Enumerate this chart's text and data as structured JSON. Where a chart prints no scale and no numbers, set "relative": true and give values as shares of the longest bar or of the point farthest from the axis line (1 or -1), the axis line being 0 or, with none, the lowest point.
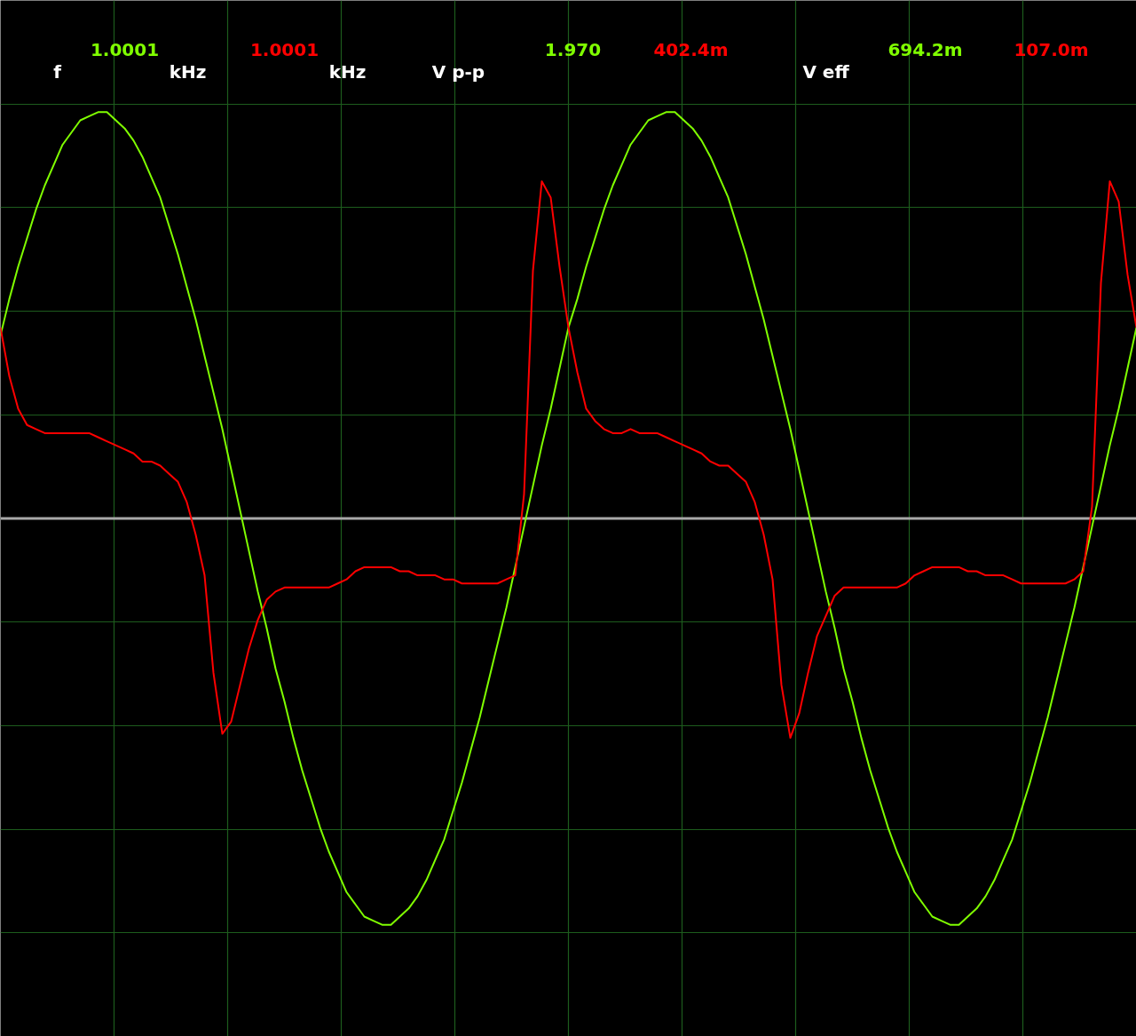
{
  "chart_data": {
    "type": "line",
    "relative": true,
    "categories": [
      null,
      null,
      null,
      null,
      null,
      null,
      null,
      null,
      null,
      null,
      null,
      null,
      null,
      null,
      null,
      null,
      null,
      null,
      null,
      null,
      null,
      null,
      null,
      null,
      null,
      null,
      null,
      null,
      null,
      null,
      null,
      null,
      null,
      null,
      null,
      null,
      null,
      null,
      null,
      null,
      null,
      null,
      null,
      null,
      null,
      null,
      null,
      null,
      null,
      null,
      null,
      null,
      null,
      null,
      null,
      null,
      null,
      null,
      null,
      null,
      null,
      null,
      null,
      null,
      null,
      null,
      null,
      null,
      null,
      null,
      null,
      null,
      null,
      null,
      null,
      null,
      null,
      null,
      null,
      null,
      null,
      null,
      null,
      null,
      null,
      null,
      null,
      null,
      null,
      null,
      null,
      null,
      null,
      null,
      null,
      null,
      null,
      null,
      null,
      null,
      null,
      null,
      null,
      null,
      null,
      null,
      null,
      null,
      null,
      null,
      null,
      null,
      null,
      null,
      null,
      null,
      null,
      null,
      null,
      null,
      null,
      null,
      null,
      null,
      null,
      null,
      null,
      null,
      null
    ],
    "series": [
      {
        "color": "#80ff00",
        "values": [
          0.45,
          0.54,
          0.62,
          0.69,
          0.76,
          0.82,
          0.87,
          0.92,
          0.95,
          0.98,
          0.99,
          1.0,
          1.0,
          0.98,
          0.96,
          0.93,
          0.89,
          0.84,
          0.79,
          0.72,
          0.65,
          0.57,
          0.49,
          0.4,
          0.31,
          0.22,
          0.12,
          0.02,
          -0.08,
          -0.18,
          -0.27,
          -0.37,
          -0.45,
          -0.54,
          -0.62,
          -0.69,
          -0.76,
          -0.82,
          -0.87,
          -0.92,
          -0.95,
          -0.98,
          -0.99,
          -1.0,
          -1.0,
          -0.98,
          -0.96,
          -0.93,
          -0.89,
          -0.84,
          -0.79,
          -0.72,
          -0.65,
          -0.57,
          -0.49,
          -0.4,
          -0.31,
          -0.22,
          -0.12,
          -0.02,
          0.08,
          0.18,
          0.27,
          0.37,
          0.47,
          0.54,
          0.62,
          0.69,
          0.76,
          0.82,
          0.87,
          0.92,
          0.95,
          0.98,
          0.99,
          1.0,
          1.0,
          0.98,
          0.96,
          0.93,
          0.89,
          0.84,
          0.79,
          0.72,
          0.65,
          0.57,
          0.49,
          0.4,
          0.31,
          0.22,
          0.12,
          0.02,
          -0.08,
          -0.18,
          -0.27,
          -0.37,
          -0.45,
          -0.54,
          -0.62,
          -0.69,
          -0.76,
          -0.82,
          -0.87,
          -0.92,
          -0.95,
          -0.98,
          -0.99,
          -1.0,
          -1.0,
          -0.98,
          -0.96,
          -0.93,
          -0.89,
          -0.84,
          -0.79,
          -0.72,
          -0.65,
          -0.57,
          -0.49,
          -0.4,
          -0.31,
          -0.22,
          -0.12,
          -0.02,
          0.08,
          0.18,
          0.27,
          0.37,
          0.47
        ]
      },
      {
        "color": "#ff0000",
        "values": [
          0.47,
          0.35,
          0.27,
          0.23,
          0.22,
          0.21,
          0.21,
          0.21,
          0.21,
          0.21,
          0.21,
          0.2,
          0.19,
          0.18,
          0.17,
          0.16,
          0.14,
          0.14,
          0.13,
          0.11,
          0.09,
          0.04,
          -0.04,
          -0.14,
          -0.38,
          -0.53,
          -0.5,
          -0.41,
          -0.32,
          -0.25,
          -0.2,
          -0.18,
          -0.17,
          -0.17,
          -0.17,
          -0.17,
          -0.17,
          -0.17,
          -0.16,
          -0.15,
          -0.13,
          -0.12,
          -0.12,
          -0.12,
          -0.12,
          -0.13,
          -0.13,
          -0.14,
          -0.14,
          -0.14,
          -0.15,
          -0.15,
          -0.16,
          -0.16,
          -0.16,
          -0.16,
          -0.16,
          -0.15,
          -0.14,
          0.06,
          0.61,
          0.83,
          0.79,
          0.62,
          0.47,
          0.36,
          0.27,
          0.24,
          0.22,
          0.21,
          0.21,
          0.22,
          0.21,
          0.21,
          0.21,
          0.2,
          0.19,
          0.18,
          0.17,
          0.16,
          0.14,
          0.13,
          0.13,
          0.11,
          0.09,
          0.04,
          -0.04,
          -0.15,
          -0.41,
          -0.54,
          -0.48,
          -0.38,
          -0.29,
          -0.24,
          -0.19,
          -0.17,
          -0.17,
          -0.17,
          -0.17,
          -0.17,
          -0.17,
          -0.17,
          -0.16,
          -0.14,
          -0.13,
          -0.12,
          -0.12,
          -0.12,
          -0.12,
          -0.13,
          -0.13,
          -0.14,
          -0.14,
          -0.14,
          -0.15,
          -0.16,
          -0.16,
          -0.16,
          -0.16,
          -0.16,
          -0.16,
          -0.15,
          -0.13,
          0.03,
          0.58,
          0.83,
          0.78,
          0.6,
          0.47
        ]
      }
    ],
    "grid": true,
    "ref_lines": [
      {
        "axis": "y",
        "value": 0,
        "color": "#a8a8a8"
      }
    ],
    "annotations": [
      "f",
      "1.0001",
      "kHz",
      "1.0001",
      "kHz",
      "V p-p",
      "1.970",
      "402.4m",
      "V eff",
      "694.2m",
      "107.0m"
    ]
  }
}
